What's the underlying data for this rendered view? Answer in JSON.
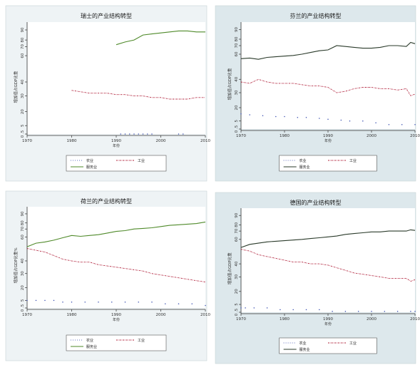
{
  "colors": {
    "agriculture": "#3a4fb0",
    "industry": "#b0203a",
    "services_green": "#4f8a2a",
    "services_dark": "#2a3a2a",
    "bg_light": "#eef3f5",
    "bg_blue": "#dde8ec",
    "plot_bg": "#ffffff",
    "axis": "#333333"
  },
  "chart_data": [
    {
      "type": "line",
      "title": "瑞士的产业结构转型",
      "ylabel": "增加值占GDP比重",
      "xlabel": "年份",
      "xlim": [
        1970,
        2010
      ],
      "x_ticks": [
        1970,
        1980,
        1990,
        2000,
        2010
      ],
      "y_ticks": [
        0.5,
        5,
        20,
        30,
        40,
        60,
        70,
        80,
        90
      ],
      "legend_placement": "bottom",
      "style": "light",
      "series": [
        {
          "name": "农业",
          "style": "dotted",
          "color": "agriculture",
          "x": [
            1991,
            1992,
            1993,
            1994,
            1995,
            1996,
            1997,
            1998,
            2004,
            2005
          ],
          "y": [
            0.5,
            0.5,
            0.5,
            0.5,
            0.5,
            0.5,
            0.5,
            0.5,
            0.5,
            0.5
          ]
        },
        {
          "name": "工业",
          "style": "dashdot",
          "color": "industry",
          "x": [
            1980,
            1982,
            1984,
            1986,
            1988,
            1990,
            1992,
            1994,
            1996,
            1998,
            2000,
            2002,
            2004,
            2006,
            2008,
            2010
          ],
          "y": [
            34,
            33,
            32,
            32,
            32,
            31,
            31,
            30,
            30,
            29,
            29,
            28,
            28,
            28,
            29,
            29
          ]
        },
        {
          "name": "服务业",
          "style": "solid",
          "color": "services_green",
          "x": [
            1990,
            1992,
            1994,
            1996,
            1998,
            2000,
            2002,
            2004,
            2006,
            2008,
            2010
          ],
          "y": [
            73,
            77,
            80,
            85,
            86,
            87,
            88,
            89,
            89,
            88,
            88
          ]
        }
      ]
    },
    {
      "type": "line",
      "title": "芬兰的产业结构转型",
      "ylabel": "增加值占GDP比重",
      "xlabel": "年份",
      "xlim": [
        1970,
        2010
      ],
      "x_ticks": [
        1970,
        1980,
        1990,
        2000,
        2010
      ],
      "y_ticks": [
        0.5,
        5,
        20,
        30,
        40,
        60,
        70,
        80,
        90
      ],
      "legend_placement": "bottom",
      "style": "blue",
      "series": [
        {
          "name": "农业",
          "style": "dotted",
          "color": "agriculture",
          "x": [
            1970,
            1972,
            1975,
            1978,
            1980,
            1983,
            1985,
            1988,
            1990,
            1993,
            1995,
            1998,
            2001,
            2004,
            2007,
            2010
          ],
          "y": [
            13,
            12,
            11,
            10,
            10,
            9,
            9,
            8,
            7,
            6,
            5,
            5,
            4,
            3,
            3,
            3
          ]
        },
        {
          "name": "工业",
          "style": "dashdot",
          "color": "industry",
          "x": [
            1970,
            1972,
            1974,
            1976,
            1978,
            1980,
            1982,
            1984,
            1986,
            1988,
            1990,
            1992,
            1994,
            1996,
            1998,
            2000,
            2002,
            2004,
            2006,
            2008,
            2009,
            2010
          ],
          "y": [
            38,
            37,
            40,
            38,
            37,
            37,
            37,
            36,
            35,
            35,
            34,
            30,
            31,
            33,
            34,
            34,
            33,
            33,
            32,
            33,
            28,
            29
          ]
        },
        {
          "name": "服务业",
          "style": "solid",
          "color": "services_dark",
          "x": [
            1970,
            1972,
            1974,
            1976,
            1978,
            1980,
            1982,
            1984,
            1986,
            1988,
            1990,
            1992,
            1994,
            1996,
            1998,
            2000,
            2002,
            2004,
            2006,
            2008,
            2009,
            2010
          ],
          "y": [
            53,
            54,
            52,
            55,
            56,
            57,
            58,
            60,
            62,
            64,
            65,
            70,
            69,
            68,
            67,
            67,
            68,
            70,
            70,
            69,
            75,
            73
          ]
        }
      ]
    },
    {
      "type": "line",
      "title": "荷兰的产业结构转型",
      "ylabel": "增加值占GDP比重%",
      "xlabel": "年份",
      "xlim": [
        1970,
        2010
      ],
      "x_ticks": [
        1970,
        1980,
        1990,
        2000,
        2010
      ],
      "y_ticks": [
        0.5,
        5,
        20,
        30,
        40,
        60,
        70,
        80,
        90
      ],
      "legend_placement": "bottom",
      "style": "light",
      "series": [
        {
          "name": "农业",
          "style": "dotted",
          "color": "agriculture",
          "x": [
            1970,
            1972,
            1974,
            1976,
            1978,
            1980,
            1983,
            1986,
            1989,
            1992,
            1995,
            1998,
            2001,
            2004,
            2007,
            2010
          ],
          "y": [
            5,
            5,
            5,
            5,
            4,
            4,
            4,
            4,
            4,
            4,
            4,
            4,
            3,
            3,
            3,
            2
          ]
        },
        {
          "name": "工业",
          "style": "dashdot",
          "color": "industry",
          "x": [
            1970,
            1972,
            1974,
            1976,
            1978,
            1980,
            1982,
            1984,
            1986,
            1988,
            1990,
            1992,
            1994,
            1996,
            1998,
            2000,
            2002,
            2004,
            2006,
            2008,
            2010
          ],
          "y": [
            47,
            46,
            45,
            43,
            41,
            40,
            39,
            39,
            37,
            36,
            35,
            34,
            33,
            32,
            30,
            29,
            28,
            27,
            26,
            25,
            24
          ]
        },
        {
          "name": "服务业",
          "style": "solid",
          "color": "services_green",
          "x": [
            1970,
            1972,
            1974,
            1976,
            1978,
            1980,
            1982,
            1984,
            1986,
            1988,
            1990,
            1992,
            1994,
            1996,
            1998,
            2000,
            2002,
            2004,
            2006,
            2008,
            2010
          ],
          "y": [
            48,
            50,
            52,
            55,
            59,
            62,
            61,
            62,
            63,
            65,
            67,
            68,
            70,
            71,
            72,
            74,
            76,
            77,
            78,
            79,
            81
          ]
        }
      ]
    },
    {
      "type": "line",
      "title": "德国的产业结构转型",
      "ylabel": "增加值占GDP比重",
      "xlabel": "年份",
      "xlim": [
        1970,
        2010
      ],
      "x_ticks": [
        1970,
        1980,
        1990,
        2000,
        2010
      ],
      "y_ticks": [
        0.5,
        5,
        20,
        30,
        40,
        60,
        70,
        80,
        90
      ],
      "legend_placement": "bottom",
      "style": "blue",
      "series": [
        {
          "name": "农业",
          "style": "dotted",
          "color": "agriculture",
          "x": [
            1970,
            1971,
            1973,
            1976,
            1979,
            1982,
            1985,
            1988,
            1991,
            1994,
            1997,
            2000,
            2003,
            2006,
            2009,
            2010
          ],
          "y": [
            3,
            3,
            3,
            3,
            2,
            2,
            2,
            2,
            1,
            1,
            1,
            1,
            1,
            1,
            1,
            1
          ]
        },
        {
          "name": "工业",
          "style": "dashdot",
          "color": "industry",
          "x": [
            1970,
            1972,
            1974,
            1976,
            1978,
            1980,
            1982,
            1984,
            1986,
            1988,
            1990,
            1992,
            1994,
            1996,
            1998,
            2000,
            2002,
            2004,
            2006,
            2008,
            2009,
            2010
          ],
          "y": [
            48,
            47,
            45,
            44,
            43,
            42,
            41,
            41,
            40,
            40,
            39,
            37,
            35,
            33,
            32,
            31,
            30,
            29,
            29,
            29,
            27,
            28
          ]
        },
        {
          "name": "服务业",
          "style": "solid",
          "color": "services_dark",
          "x": [
            1970,
            1972,
            1974,
            1976,
            1978,
            1980,
            1982,
            1984,
            1986,
            1988,
            1990,
            1992,
            1994,
            1996,
            1998,
            2000,
            2002,
            2004,
            2006,
            2008,
            2009,
            2010
          ],
          "y": [
            49,
            52,
            54,
            56,
            57,
            58,
            59,
            60,
            61,
            62,
            63,
            64,
            66,
            67,
            68,
            69,
            69,
            70,
            70,
            70,
            72,
            71
          ]
        }
      ]
    }
  ]
}
